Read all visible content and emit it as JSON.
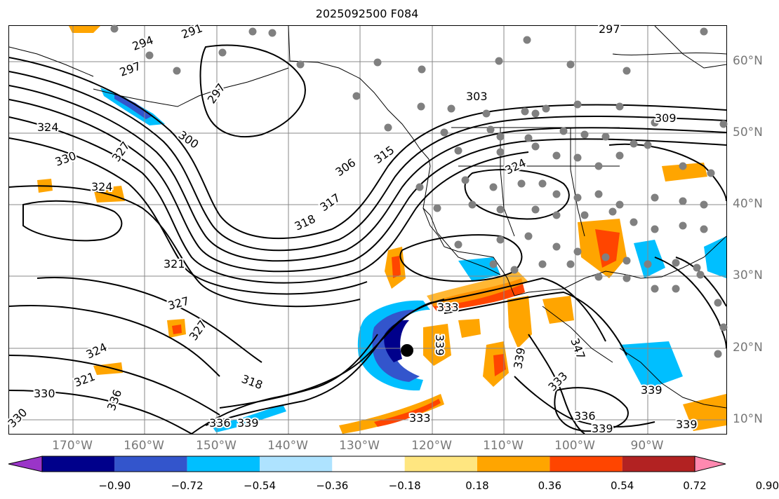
{
  "title": "2025092500 F084",
  "lon_labels": [
    "170°W",
    "160°W",
    "150°W",
    "140°W",
    "130°W",
    "120°W",
    "110°W",
    "100°W",
    "90°W"
  ],
  "lat_labels": [
    "60°N",
    "50°N",
    "40°N",
    "30°N",
    "20°N",
    "10°N"
  ],
  "contour_labels": [
    {
      "text": "291"
    },
    {
      "text": "294"
    },
    {
      "text": "297"
    },
    {
      "text": "297"
    },
    {
      "text": "297"
    },
    {
      "text": "300"
    },
    {
      "text": "303"
    },
    {
      "text": "306"
    },
    {
      "text": "309"
    },
    {
      "text": "315"
    },
    {
      "text": "317"
    },
    {
      "text": "318"
    },
    {
      "text": "318"
    },
    {
      "text": "321"
    },
    {
      "text": "321"
    },
    {
      "text": "324"
    },
    {
      "text": "324"
    },
    {
      "text": "324"
    },
    {
      "text": "324"
    },
    {
      "text": "327"
    },
    {
      "text": "327"
    },
    {
      "text": "327"
    },
    {
      "text": "330"
    },
    {
      "text": "330"
    },
    {
      "text": "330"
    },
    {
      "text": "333"
    },
    {
      "text": "333"
    },
    {
      "text": "333"
    },
    {
      "text": "336"
    },
    {
      "text": "336"
    },
    {
      "text": "336"
    },
    {
      "text": "339"
    },
    {
      "text": "339"
    },
    {
      "text": "339"
    },
    {
      "text": "339"
    },
    {
      "text": "339"
    },
    {
      "text": "339"
    },
    {
      "text": "347"
    }
  ],
  "colorbar": {
    "ticks": [
      "−0.90",
      "−0.72",
      "−0.54",
      "−0.36",
      "−0.18",
      "0.18",
      "0.36",
      "0.54",
      "0.72",
      "0.90"
    ],
    "colors": [
      "#9a35c8",
      "#00008b",
      "#3355cc",
      "#00bfff",
      "#aee3ff",
      "#ffffff",
      "#ffe680",
      "#ffa500",
      "#ff4500",
      "#b22222",
      "#ff89b0"
    ]
  },
  "colors": {
    "contour": "#000000",
    "grid": "#888888",
    "station_dot": "#808080",
    "coast": "#000000"
  }
}
